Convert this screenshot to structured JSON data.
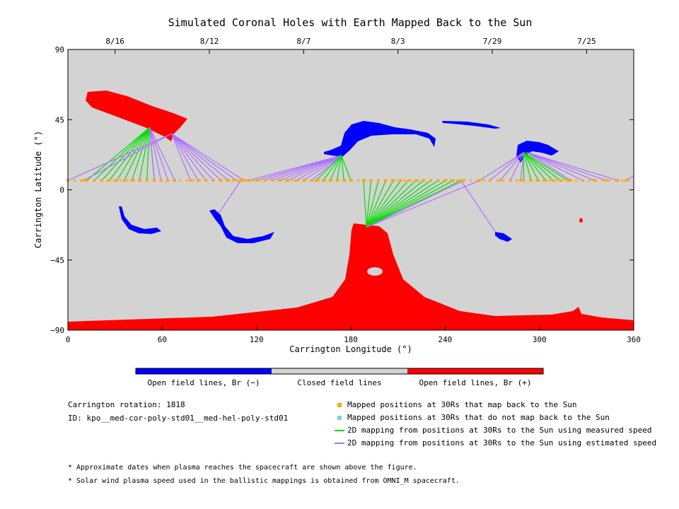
{
  "chart_data": {
    "type": "map",
    "title": "Simulated Coronal Holes with Earth Mapped Back to the Sun",
    "xlabel": "Carrington Longitude (°)",
    "ylabel": "Carrington Latitude (°)",
    "xlim": [
      0,
      360
    ],
    "ylim": [
      -90,
      90
    ],
    "x_ticks": [
      "0",
      "60",
      "120",
      "180",
      "240",
      "300",
      "360"
    ],
    "y_ticks": [
      "90",
      "45",
      "0",
      "−45",
      "−90"
    ],
    "top_dates": [
      {
        "label": "8/16",
        "lon": 30
      },
      {
        "label": "8/12",
        "lon": 90
      },
      {
        "label": "8/7",
        "lon": 150
      },
      {
        "label": "8/3",
        "lon": 210
      },
      {
        "label": "7/29",
        "lon": 270
      },
      {
        "label": "7/25",
        "lon": 330
      }
    ],
    "colorbar": {
      "labels": [
        "Open field lines, Br (−)",
        "Closed field lines",
        "Open field lines, Br (+)"
      ],
      "colors": [
        "#0000ff",
        "#d3d3d3",
        "#ff0000"
      ]
    },
    "colors": {
      "closed": "#d3d3d3",
      "negative": "#0000ff",
      "positive": "#ff0000",
      "map_point": "#ffa500",
      "measured": "#00dd00",
      "estimated": "#b070ff"
    },
    "mapping_groups": [
      {
        "footpoint": [
          52,
          40
        ],
        "lon_range": [
          12,
          55
        ],
        "lat": 6,
        "n": 10,
        "kind": "measured"
      },
      {
        "footpoint": [
          52,
          40
        ],
        "lon_range": [
          55,
          68
        ],
        "lat": 6,
        "n": 4,
        "kind": "estimated"
      },
      {
        "footpoint": [
          66,
          36
        ],
        "lon_range": [
          0,
          10
        ],
        "lat": 6,
        "n": 2,
        "kind": "estimated"
      },
      {
        "footpoint": [
          66,
          36
        ],
        "lon_range": [
          78,
          112
        ],
        "lat": 6,
        "n": 8,
        "kind": "estimated"
      },
      {
        "footpoint": [
          174,
          22
        ],
        "lon_range": [
          115,
          155
        ],
        "lat": 6,
        "n": 9,
        "kind": "estimated"
      },
      {
        "footpoint": [
          174,
          22
        ],
        "lon_range": [
          158,
          180
        ],
        "lat": 6,
        "n": 6,
        "kind": "measured"
      },
      {
        "footpoint": [
          190,
          -24
        ],
        "lon_range": [
          188,
          250
        ],
        "lat": 6,
        "n": 14,
        "kind": "measured"
      },
      {
        "footpoint": [
          190,
          -24
        ],
        "lon_range": [
          252,
          262
        ],
        "lat": 6,
        "n": 2,
        "kind": "estimated"
      },
      {
        "footpoint": [
          96,
          -15
        ],
        "lon_range": [
          110,
          110
        ],
        "lat": 6,
        "n": 1,
        "kind": "estimated"
      },
      {
        "footpoint": [
          272,
          -27
        ],
        "lon_range": [
          250,
          250
        ],
        "lat": 6,
        "n": 1,
        "kind": "estimated"
      },
      {
        "footpoint": [
          290,
          24
        ],
        "lon_range": [
          262,
          288
        ],
        "lat": 6,
        "n": 5,
        "kind": "estimated"
      },
      {
        "footpoint": [
          290,
          24
        ],
        "lon_range": [
          290,
          318
        ],
        "lat": 6,
        "n": 7,
        "kind": "measured"
      },
      {
        "footpoint": [
          292,
          24
        ],
        "lon_range": [
          320,
          350
        ],
        "lat": 6,
        "n": 5,
        "kind": "estimated"
      },
      {
        "footpoint": [
          360,
          9
        ],
        "lon_range": [
          355,
          358
        ],
        "lat": 6,
        "n": 1,
        "kind": "estimated"
      }
    ]
  },
  "info": {
    "rotation": "Carrington rotation: 1818",
    "id": "ID: kpo__med-cor-poly-std01__med-hel-poly-std01"
  },
  "legend": [
    {
      "kind": "square",
      "color": "#ffa500",
      "label": "Mapped positions at 30Rs that map back to the Sun"
    },
    {
      "kind": "square",
      "color": "#87c5f0",
      "label": "Mapped positions at 30Rs that do not map back to the Sun"
    },
    {
      "kind": "line",
      "color": "#00dd00",
      "label": "2D mapping from positions at 30Rs to the Sun using measured speed"
    },
    {
      "kind": "line",
      "color": "#b070ff",
      "label": "2D mapping from positions at 30Rs to the Sun using estimated speed"
    }
  ],
  "notes": [
    "* Approximate dates when plasma reaches the spacecraft are shown above the figure.",
    "* Solar wind plasma speed used in the ballistic mappings is obtained from OMNI_M spacecraft."
  ]
}
